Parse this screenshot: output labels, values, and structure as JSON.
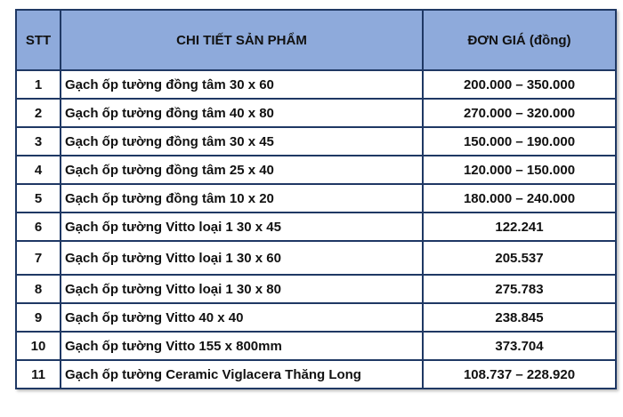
{
  "headers": {
    "stt": "STT",
    "product": "CHI TIẾT SẢN PHẨM",
    "price": "ĐƠN GIÁ (đồng)"
  },
  "rows": [
    {
      "stt": "1",
      "product": "Gạch ốp tường đồng tâm 30 x 60",
      "price": "200.000 – 350.000"
    },
    {
      "stt": "2",
      "product": "Gạch ốp tường đồng tâm 40 x 80",
      "price": "270.000 – 320.000"
    },
    {
      "stt": "3",
      "product": "Gạch ốp tường đồng tâm 30 x 45",
      "price": "150.000 – 190.000"
    },
    {
      "stt": "4",
      "product": "Gạch ốp tường đồng tâm 25 x 40",
      "price": "120.000 – 150.000"
    },
    {
      "stt": "5",
      "product": "Gạch ốp tường đồng tâm 10 x 20",
      "price": "180.000 – 240.000"
    },
    {
      "stt": "6",
      "product": "Gạch ốp tường Vitto loại 1 30 x 45",
      "price": "122.241"
    },
    {
      "stt": "7",
      "product": "Gạch ốp tường Vitto loại 1 30 x 60",
      "price": "205.537"
    },
    {
      "stt": "8",
      "product": "Gạch ốp tường Vitto loại 1 30 x 80",
      "price": "275.783"
    },
    {
      "stt": "9",
      "product": "Gạch ốp tường Vitto 40 x 40",
      "price": "238.845"
    },
    {
      "stt": "10",
      "product": "Gạch ốp tường Vitto 155 x 800mm",
      "price": "373.704"
    },
    {
      "stt": "11",
      "product": "Gạch ốp tường Ceramic Viglacera Thăng Long",
      "price": "108.737 – 228.920"
    }
  ]
}
